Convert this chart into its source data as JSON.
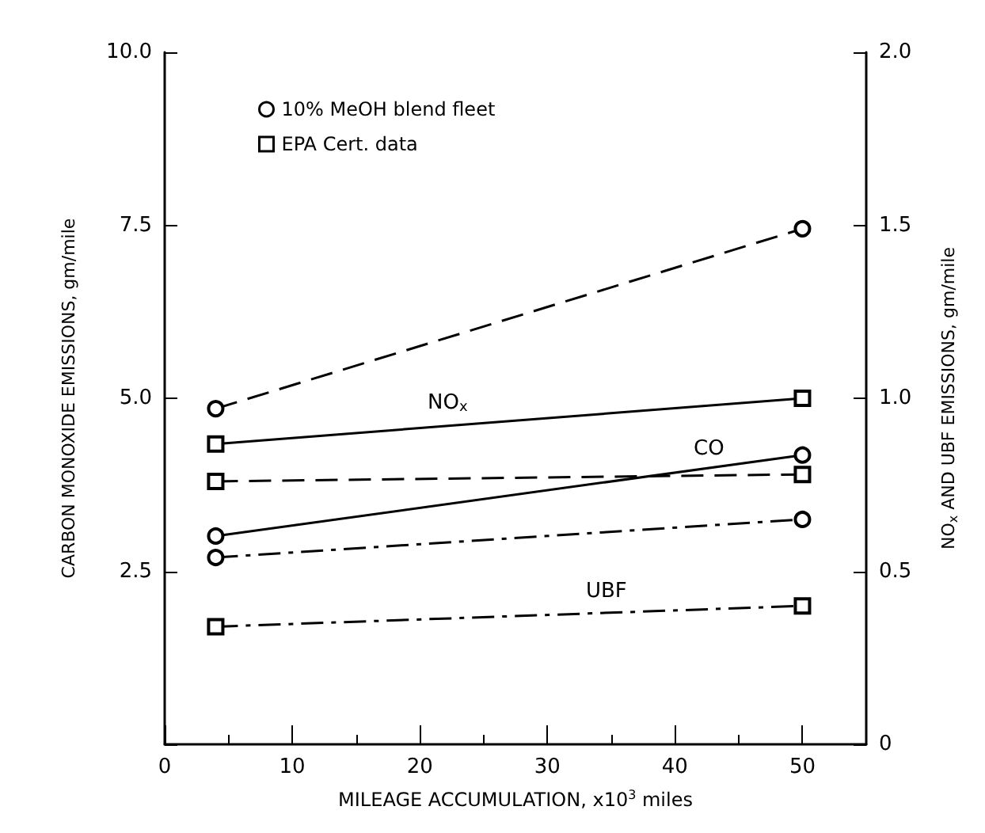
{
  "chart_data": {
    "type": "line",
    "xlabel": "MILEAGE ACCUMULATION, x10$^{3}$ miles",
    "ylabel": "CARBON MONOXIDE EMISSIONS, gm/mile",
    "y2label": "NO$_{x}$ AND UBF EMISSIONS, gm/mile",
    "xlim": [
      0,
      55
    ],
    "xticks": [
      0,
      10,
      20,
      30,
      40,
      50
    ],
    "ylim": [
      0,
      10
    ],
    "yticks": [
      {
        "value": 0,
        "label": null
      },
      2.5,
      {
        "value": 5,
        "label": "5.0"
      },
      7.5,
      {
        "value": 10,
        "label": "10.0"
      }
    ],
    "y2lim": [
      0,
      2
    ],
    "y2ticks": [
      0,
      0.5,
      {
        "value": 1,
        "label": "1.0"
      },
      1.5,
      {
        "value": 2,
        "label": "2.0"
      }
    ],
    "x": [
      4,
      50
    ],
    "grid": false,
    "legend": "top left",
    "series": [
      {
        "name": "10% MeOH blend fleet",
        "color": "#000000",
        "values": [
          0.97,
          1.49
        ],
        "axis": "y2",
        "marker": "circle",
        "line_style": "dashed"
      },
      {
        "name": "EPA Cert. data",
        "color": "#000000",
        "values": [
          4.34,
          5.0
        ],
        "marker": "square",
        "line_style": "solid"
      },
      {
        "color": "#000000",
        "values": [
          0.76,
          0.78
        ],
        "axis": "y2",
        "marker": "square",
        "line_style": "dashed"
      },
      {
        "color": "#000000",
        "values": [
          3.01,
          4.18
        ],
        "marker": "circle",
        "line_style": "solid"
      },
      {
        "color": "#000000",
        "values": [
          0.54,
          0.65
        ],
        "axis": "y2",
        "marker": "circle",
        "line_style": "dashdot"
      },
      {
        "color": "#000000",
        "values": [
          0.34,
          0.4
        ],
        "axis": "y2",
        "marker": "square",
        "line_style": "dashdot"
      }
    ],
    "annotations": [
      "NO$_{x}$",
      "CO",
      "UBF"
    ]
  }
}
